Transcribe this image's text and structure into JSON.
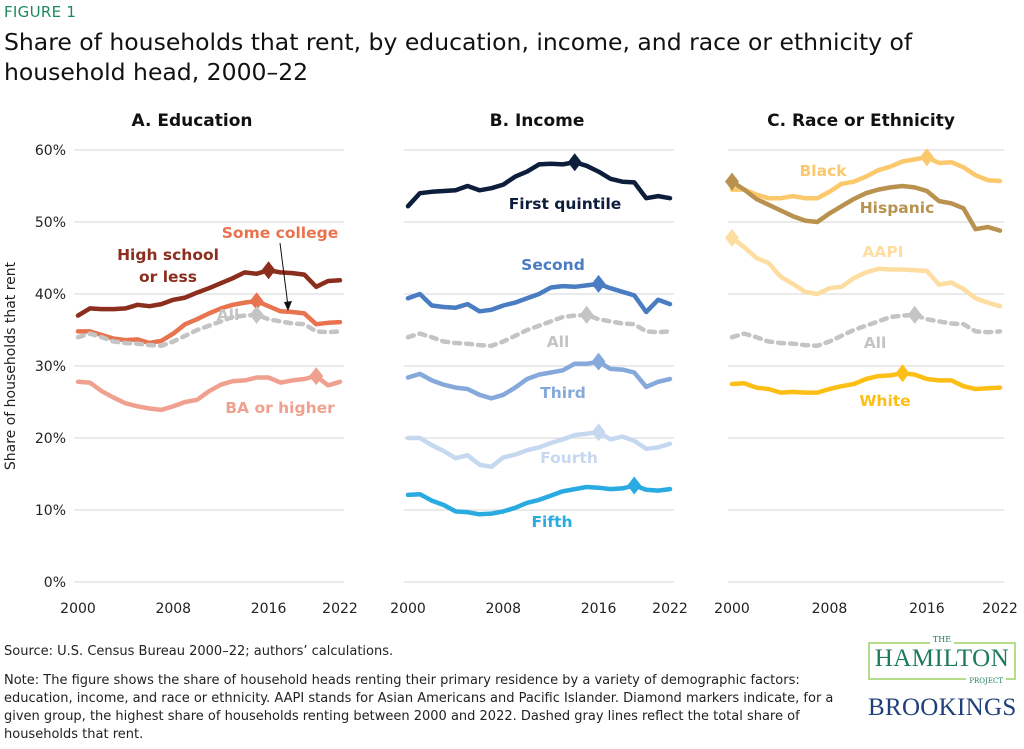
{
  "figure_label": "FIGURE 1",
  "title": "Share of households that rent, by education, income, and race or ethnicity of household head, 2000–22",
  "source": "Source: U.S. Census Bureau 2000–22; authors’ calculations.",
  "note": "Note: The figure shows the share of household heads renting their primary residence by a variety of demographic factors: education, income, and race or ethnicity. AAPI stands for Asian Americans and Pacific Islander. Diamond markers indicate, for a given group, the highest share of households renting between 2000 and 2022. Dashed gray lines reflect the total share of households that rent.",
  "logo": {
    "the": "THE",
    "hamilton": "HAMILTON",
    "project": "PROJECT",
    "brookings": "BROOKINGS"
  },
  "chart_data": [
    {
      "type": "line",
      "title": "A. Education",
      "ylabel": "Share of households that rent",
      "x": [
        2000,
        2001,
        2002,
        2003,
        2004,
        2005,
        2006,
        2007,
        2008,
        2009,
        2010,
        2011,
        2012,
        2013,
        2014,
        2015,
        2016,
        2017,
        2018,
        2019,
        2020,
        2021,
        2022
      ],
      "xticks": [
        "2000",
        "2008",
        "2016",
        "2022"
      ],
      "yticks": [
        "0%",
        "10%",
        "20%",
        "30%",
        "40%",
        "50%",
        "60%"
      ],
      "ylim": [
        0,
        60
      ],
      "grid": true,
      "series": [
        {
          "name": "High school or less",
          "color": "#8b2e1e",
          "dashed": false,
          "values": [
            37,
            38,
            37.9,
            37.9,
            38,
            38.5,
            38.3,
            38.6,
            39.2,
            39.5,
            40.2,
            40.8,
            41.5,
            42.2,
            43,
            42.8,
            43.3,
            43,
            42.9,
            42.7,
            41,
            41.8,
            41.9
          ]
        },
        {
          "name": "Some college",
          "color": "#e8734f",
          "dashed": false,
          "values": [
            34.8,
            34.8,
            34.3,
            33.8,
            33.6,
            33.7,
            33.2,
            33.5,
            34.5,
            35.8,
            36.5,
            37.3,
            38,
            38.5,
            38.8,
            39,
            38.3,
            37.6,
            37.5,
            37.3,
            35.8,
            36,
            36.1
          ]
        },
        {
          "name": "All",
          "color": "#c4c4c4",
          "dashed": true,
          "values": [
            34,
            34.5,
            34,
            33.4,
            33.2,
            33.1,
            32.9,
            32.8,
            33.4,
            34.2,
            35,
            35.6,
            36.2,
            36.8,
            37,
            37.1,
            36.5,
            36.2,
            35.9,
            35.8,
            34.8,
            34.7,
            34.8
          ]
        },
        {
          "name": "BA or higher",
          "color": "#f0a08e",
          "dashed": false,
          "values": [
            27.8,
            27.7,
            26.5,
            25.6,
            24.8,
            24.4,
            24.1,
            23.9,
            24.4,
            25,
            25.3,
            26.5,
            27.4,
            27.9,
            28,
            28.4,
            28.4,
            27.7,
            28,
            28.2,
            28.6,
            27.3,
            27.8
          ]
        }
      ]
    },
    {
      "type": "line",
      "title": "B. Income",
      "x": [
        2000,
        2001,
        2002,
        2003,
        2004,
        2005,
        2006,
        2007,
        2008,
        2009,
        2010,
        2011,
        2012,
        2013,
        2014,
        2015,
        2016,
        2017,
        2018,
        2019,
        2020,
        2021,
        2022
      ],
      "xticks": [
        "2000",
        "2008",
        "2016",
        "2022"
      ],
      "ylim": [
        0,
        60
      ],
      "grid": true,
      "series": [
        {
          "name": "First quintile",
          "color": "#0d1e3c",
          "dashed": false,
          "values": [
            52.2,
            54,
            54.2,
            54.3,
            54.4,
            55,
            54.4,
            54.7,
            55.2,
            56.3,
            57,
            58,
            58.1,
            58,
            58.3,
            57.8,
            57,
            56,
            55.6,
            55.5,
            53.3,
            53.6,
            53.3
          ]
        },
        {
          "name": "Second",
          "color": "#4a7cc2",
          "dashed": false,
          "values": [
            39.4,
            40,
            38.4,
            38.2,
            38.1,
            38.6,
            37.6,
            37.8,
            38.4,
            38.8,
            39.4,
            40,
            40.9,
            41.1,
            41,
            41.2,
            41.4,
            40.8,
            40.3,
            39.8,
            37.5,
            39.2,
            38.6
          ]
        },
        {
          "name": "All",
          "color": "#c4c4c4",
          "dashed": true,
          "values": [
            34,
            34.5,
            34,
            33.4,
            33.2,
            33.1,
            32.9,
            32.8,
            33.4,
            34.2,
            35,
            35.6,
            36.2,
            36.8,
            37,
            37.1,
            36.5,
            36.2,
            35.9,
            35.8,
            34.8,
            34.7,
            34.8
          ]
        },
        {
          "name": "Third",
          "color": "#86a9db",
          "dashed": false,
          "values": [
            28.4,
            28.9,
            28,
            27.4,
            27,
            26.8,
            26,
            25.5,
            26,
            27,
            28.2,
            28.8,
            29.1,
            29.4,
            30.3,
            30.3,
            30.6,
            29.6,
            29.5,
            29.1,
            27.1,
            27.8,
            28.2
          ]
        },
        {
          "name": "Fourth",
          "color": "#c6d8f0",
          "dashed": false,
          "values": [
            20,
            20,
            19,
            18.2,
            17.2,
            17.6,
            16.3,
            16,
            17.3,
            17.7,
            18.3,
            18.7,
            19.3,
            19.8,
            20.4,
            20.6,
            20.8,
            19.8,
            20.2,
            19.6,
            18.5,
            18.7,
            19.2
          ]
        },
        {
          "name": "Fifth",
          "color": "#29abe2",
          "dashed": false,
          "values": [
            12.1,
            12.2,
            11.3,
            10.7,
            9.8,
            9.7,
            9.4,
            9.5,
            9.8,
            10.3,
            11,
            11.4,
            12,
            12.6,
            12.9,
            13.2,
            13.1,
            12.9,
            13,
            13.4,
            12.8,
            12.7,
            12.9
          ]
        }
      ]
    },
    {
      "type": "line",
      "title": "C. Race or Ethnicity",
      "x": [
        2000,
        2001,
        2002,
        2003,
        2004,
        2005,
        2006,
        2007,
        2008,
        2009,
        2010,
        2011,
        2012,
        2013,
        2014,
        2015,
        2016,
        2017,
        2018,
        2019,
        2020,
        2021,
        2022
      ],
      "xticks": [
        "2000",
        "2008",
        "2016",
        "2022"
      ],
      "ylim": [
        0,
        60
      ],
      "grid": true,
      "series": [
        {
          "name": "Black",
          "color": "#fbc96c",
          "dashed": false,
          "values": [
            54.5,
            54.5,
            53.8,
            53.3,
            53.3,
            53.6,
            53.3,
            53.3,
            54.2,
            55.3,
            55.6,
            56.3,
            57.2,
            57.7,
            58.4,
            58.7,
            59,
            58.2,
            58.3,
            57.6,
            56.5,
            55.8,
            55.7
          ]
        },
        {
          "name": "Hispanic",
          "color": "#b8924e",
          "dashed": false,
          "values": [
            55.6,
            54.5,
            53.2,
            52.4,
            51.6,
            50.8,
            50.2,
            50,
            51.2,
            52.2,
            53.2,
            54,
            54.5,
            54.8,
            55,
            54.8,
            54.3,
            52.9,
            52.6,
            51.9,
            49,
            49.3,
            48.8
          ]
        },
        {
          "name": "AAPI",
          "color": "#fddda0",
          "dashed": false,
          "values": [
            47.8,
            46.5,
            45,
            44.3,
            42.4,
            41.4,
            40.3,
            40,
            40.8,
            41,
            42.2,
            43,
            43.5,
            43.4,
            43.4,
            43.3,
            43.2,
            41.3,
            41.6,
            40.7,
            39.4,
            38.8,
            38.3
          ]
        },
        {
          "name": "All",
          "color": "#c4c4c4",
          "dashed": true,
          "values": [
            34,
            34.5,
            34,
            33.4,
            33.2,
            33.1,
            32.9,
            32.8,
            33.4,
            34.2,
            35,
            35.6,
            36.2,
            36.8,
            37,
            37.1,
            36.5,
            36.2,
            35.9,
            35.8,
            34.8,
            34.7,
            34.8
          ]
        },
        {
          "name": "White",
          "color": "#fdbf16",
          "dashed": false,
          "values": [
            27.5,
            27.6,
            27,
            26.8,
            26.3,
            26.4,
            26.3,
            26.3,
            26.8,
            27.2,
            27.5,
            28.2,
            28.6,
            28.7,
            29,
            28.8,
            28.2,
            28,
            28,
            27.2,
            26.8,
            26.9,
            27
          ]
        }
      ]
    }
  ]
}
